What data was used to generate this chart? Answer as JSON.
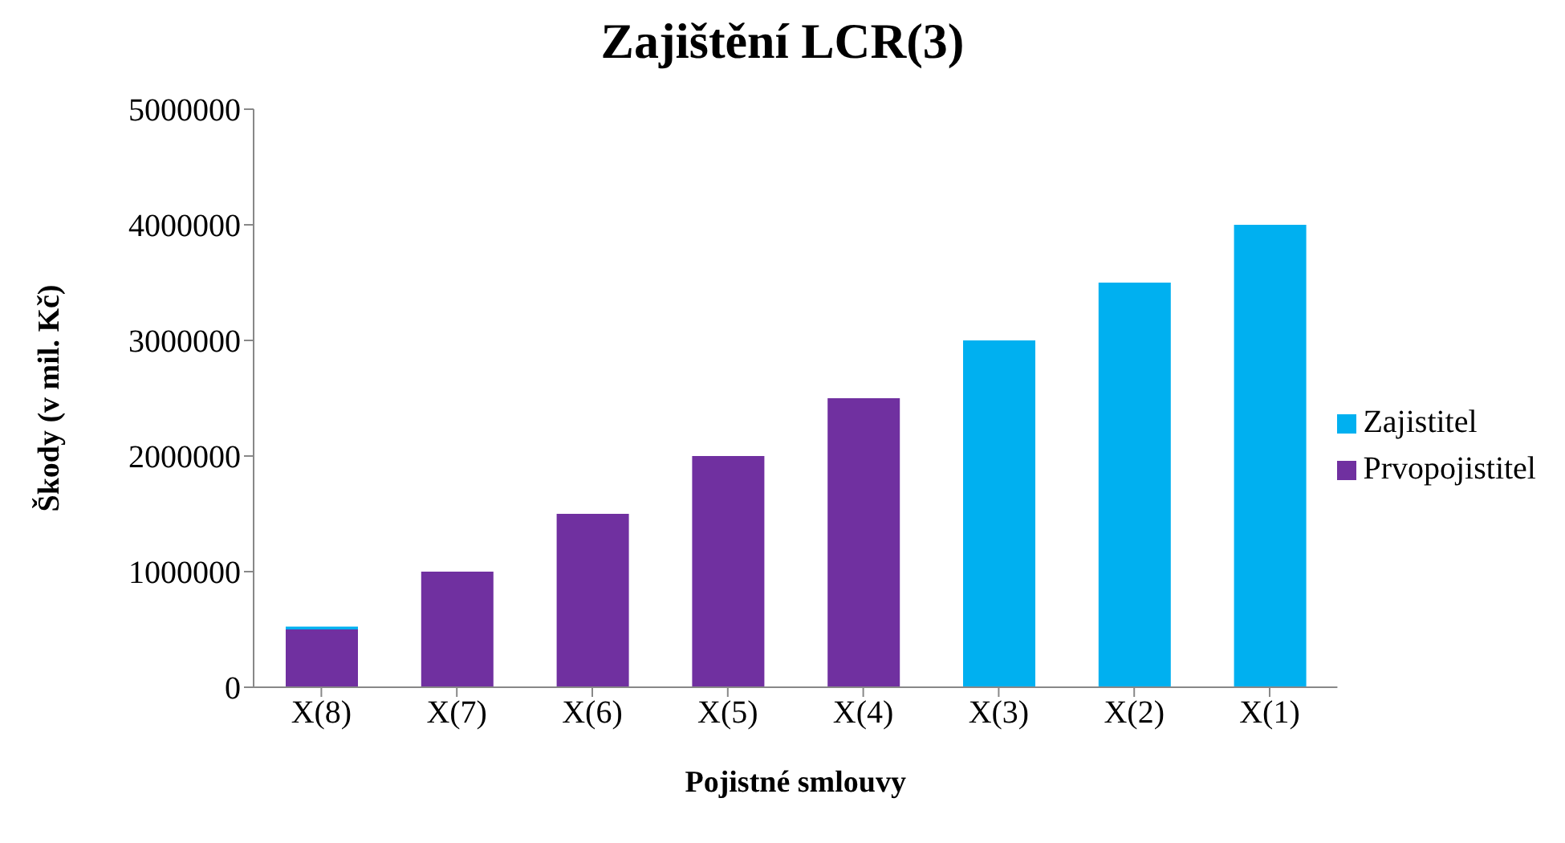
{
  "chart_data": {
    "type": "bar",
    "title": "Zajištění LCR(3)",
    "xlabel": "Pojistné smlouvy",
    "ylabel": "Škody (v mil. Kč)",
    "categories": [
      "X(8)",
      "X(7)",
      "X(6)",
      "X(5)",
      "X(4)",
      "X(3)",
      "X(2)",
      "X(1)"
    ],
    "stacked": true,
    "series": [
      {
        "name": "Prvopojistitel",
        "color": "#7030a0",
        "values": [
          500000,
          1000000,
          1500000,
          2000000,
          2500000,
          0,
          0,
          0
        ]
      },
      {
        "name": "Zajistitel",
        "color": "#00b0f0",
        "values": [
          25000,
          0,
          0,
          0,
          0,
          3000000,
          3500000,
          4000000
        ]
      }
    ],
    "ylim": [
      0,
      5000000
    ],
    "yticks": [
      0,
      1000000,
      2000000,
      3000000,
      4000000,
      5000000
    ],
    "grid": false,
    "legend": "right"
  }
}
